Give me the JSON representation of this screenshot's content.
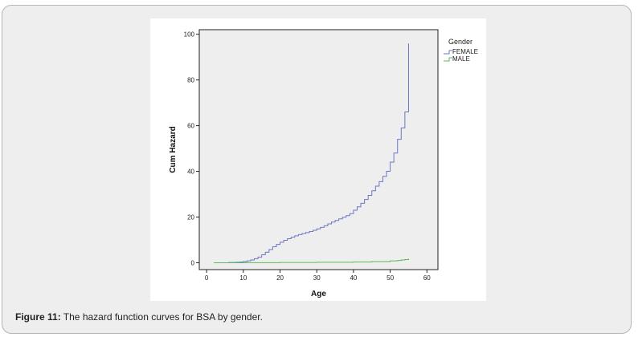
{
  "caption": {
    "label": "Figure 11:",
    "text": " The hazard function curves for BSA by gender."
  },
  "chart_data": {
    "type": "line",
    "step": true,
    "title": "",
    "xlabel": "Age",
    "ylabel": "Cum Hazard",
    "xlim": [
      -2,
      63
    ],
    "ylim": [
      -3,
      102
    ],
    "xticks": [
      0,
      10,
      20,
      30,
      40,
      50,
      60
    ],
    "yticks": [
      0,
      20,
      40,
      60,
      80,
      100
    ],
    "grid": false,
    "legend": {
      "title": "Gender",
      "placement": "right"
    },
    "plot_background": "#eeeeee",
    "series": [
      {
        "name": "FEMALE",
        "color": "#6a78c4",
        "x": [
          2,
          6,
          8,
          9,
          10,
          11,
          12,
          13,
          14,
          15,
          16,
          17,
          18,
          19,
          20,
          21,
          22,
          23,
          24,
          25,
          26,
          27,
          28,
          29,
          30,
          31,
          32,
          33,
          34,
          35,
          36,
          37,
          38,
          39,
          40,
          41,
          42,
          43,
          44,
          45,
          46,
          47,
          48,
          49,
          50,
          51,
          52,
          53,
          54,
          55
        ],
        "y": [
          0,
          0.1,
          0.2,
          0.3,
          0.5,
          0.8,
          1.2,
          1.8,
          2.5,
          3.5,
          4.6,
          5.8,
          7,
          8,
          9,
          9.8,
          10.5,
          11.2,
          11.8,
          12.3,
          12.8,
          13.2,
          13.7,
          14.2,
          14.8,
          15.5,
          16.2,
          17,
          17.8,
          18.5,
          19.2,
          19.9,
          20.6,
          21.5,
          23,
          24.5,
          26,
          27.7,
          29.5,
          31.5,
          33.5,
          35.5,
          37.8,
          40,
          44,
          48,
          54,
          59,
          66,
          96
        ]
      },
      {
        "name": "MALE",
        "color": "#5cb85c",
        "x": [
          2,
          10,
          20,
          30,
          40,
          45,
          50,
          52,
          53,
          54,
          55
        ],
        "y": [
          0,
          0.05,
          0.1,
          0.2,
          0.35,
          0.5,
          0.8,
          1.0,
          1.2,
          1.4,
          1.8
        ]
      }
    ]
  }
}
